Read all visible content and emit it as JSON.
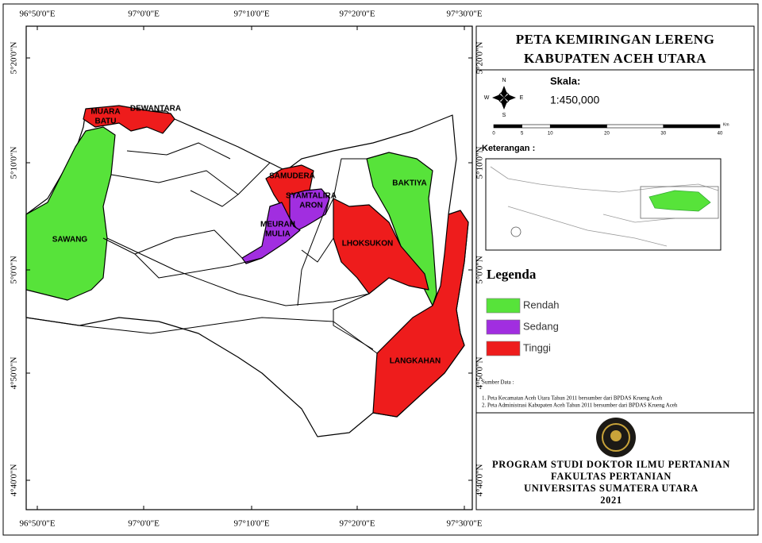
{
  "map": {
    "title": [
      "PETA KEMIRINGAN LERENG",
      "KABUPATEN ACEH UTARA"
    ],
    "longitude_labels": [
      "96°50'0\"E",
      "97°0'0\"E",
      "97°10'0\"E",
      "97°20'0\"E",
      "97°30'0\"E"
    ],
    "latitude_labels": [
      "5°20'0\"N",
      "5°10'0\"N",
      "5°0'0\"N",
      "4°50'0\"N",
      "4°40'0\"N"
    ],
    "regions": [
      {
        "label": [
          "MUARA",
          "BATU"
        ]
      },
      {
        "label": [
          "DEWANTARA"
        ]
      },
      {
        "label": [
          "SAMUDERA"
        ]
      },
      {
        "label": [
          "SYAMTALIRA",
          "ARON"
        ]
      },
      {
        "label": [
          "MEURAH",
          "MULIA"
        ]
      },
      {
        "label": [
          "BAKTIYA"
        ]
      },
      {
        "label": [
          "LHOKSUKON"
        ]
      },
      {
        "label": [
          "LANGKAHAN"
        ]
      },
      {
        "label": [
          "SAWANG"
        ]
      }
    ]
  },
  "compass": {
    "north": "N",
    "south": "S",
    "east": "E",
    "west": "W"
  },
  "scale": {
    "heading": "Skala:",
    "ratio": "1:450,000",
    "bar_ticks": [
      0,
      5,
      10,
      20,
      30,
      40
    ],
    "unit": "Km"
  },
  "inset_heading": "Keterangan :",
  "legend": {
    "title": "Legenda",
    "items": [
      {
        "label": "Rendah",
        "color": "#57e33a"
      },
      {
        "label": "Sedang",
        "color": "#a12ee0"
      },
      {
        "label": "Tinggi",
        "color": "#ee1c1c"
      }
    ]
  },
  "sources": {
    "heading": "Sumber Data :",
    "items": [
      "1. Peta Kecamatan Aceh Utara Tahun 2011 bersumber dari BPDAS Krueng Aceh",
      "2. Peta Administrasi Kabupaten Aceh Tahun 2011 bersumber dari BPDAS Krueng Aceh"
    ]
  },
  "footer": [
    "PROGRAM STUDI DOKTOR ILMU PERTANIAN",
    "FAKULTAS PERTANIAN",
    "UNIVERSITAS SUMATERA UTARA",
    "2021"
  ]
}
